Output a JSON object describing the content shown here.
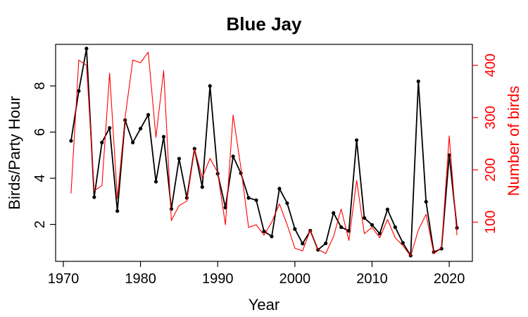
{
  "chart_data": {
    "type": "line",
    "title": "Blue Jay",
    "xlabel": "Year",
    "ylabel_left": "Birds/Party Hour",
    "ylabel_right": "Number of birds",
    "xlim": [
      1969,
      2023
    ],
    "ylim_left": [
      0.4,
      9.8
    ],
    "ylim_right": [
      25,
      440
    ],
    "xticks": [
      1970,
      1980,
      1990,
      2000,
      2010,
      2020
    ],
    "yticks_left": [
      2,
      4,
      6,
      8
    ],
    "yticks_right": [
      100,
      200,
      300,
      400
    ],
    "colors": {
      "left_series": "#000000",
      "right_series": "#ff0000",
      "axes": "#000000"
    },
    "x": [
      1971,
      1972,
      1973,
      1974,
      1975,
      1976,
      1977,
      1978,
      1979,
      1980,
      1981,
      1982,
      1983,
      1984,
      1985,
      1986,
      1987,
      1988,
      1989,
      1990,
      1991,
      1992,
      1993,
      1994,
      1995,
      1996,
      1997,
      1998,
      1999,
      2000,
      2001,
      2002,
      2003,
      2004,
      2005,
      2006,
      2007,
      2008,
      2009,
      2010,
      2011,
      2012,
      2013,
      2014,
      2015,
      2016,
      2017,
      2018,
      2019,
      2020,
      2021
    ],
    "series": [
      {
        "axis": "left",
        "marker": "point",
        "values": [
          5.62,
          7.78,
          9.62,
          3.18,
          5.55,
          6.18,
          2.58,
          6.52,
          5.55,
          6.15,
          6.75,
          3.85,
          5.8,
          2.67,
          4.85,
          3.15,
          5.28,
          3.62,
          8.0,
          4.2,
          2.73,
          4.95,
          4.22,
          3.15,
          3.05,
          1.7,
          1.48,
          3.55,
          2.92,
          1.8,
          1.17,
          1.73,
          0.9,
          1.18,
          2.5,
          1.88,
          1.72,
          5.65,
          2.28,
          1.98,
          1.6,
          2.65,
          1.88,
          1.2,
          0.65,
          8.2,
          2.98,
          0.8,
          0.95,
          5.0,
          1.85
        ]
      },
      {
        "axis": "right",
        "marker": "none",
        "values": [
          155,
          410,
          400,
          160,
          170,
          385,
          145,
          300,
          410,
          405,
          425,
          262,
          390,
          103,
          132,
          140,
          240,
          185,
          222,
          195,
          95,
          305,
          205,
          90,
          95,
          75,
          100,
          135,
          95,
          50,
          45,
          85,
          48,
          40,
          72,
          125,
          65,
          180,
          78,
          90,
          70,
          105,
          70,
          55,
          35,
          85,
          115,
          40,
          50,
          265,
          75
        ]
      }
    ]
  }
}
